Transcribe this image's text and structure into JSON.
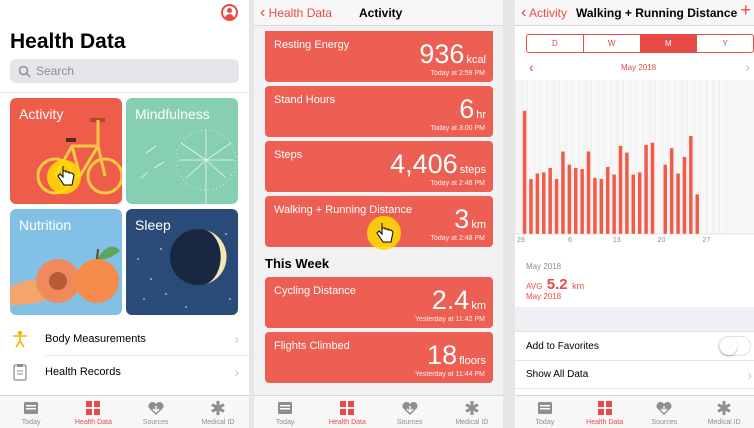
{
  "health_data": {
    "title": "Health Data",
    "search_placeholder": "Search",
    "categories": [
      {
        "label": "Activity",
        "color": "#ee5d4a"
      },
      {
        "label": "Mindfulness",
        "color": "#87cfb2"
      },
      {
        "label": "Nutrition",
        "color": "#83c0e6"
      },
      {
        "label": "Sleep",
        "color": "#2a4b78"
      }
    ],
    "rows": [
      {
        "label": "Body Measurements"
      },
      {
        "label": "Health Records"
      }
    ],
    "tabs": [
      {
        "label": "Today",
        "icon": "today-icon",
        "active": false
      },
      {
        "label": "Health Data",
        "icon": "health-data-icon",
        "active": true
      },
      {
        "label": "Sources",
        "icon": "sources-icon",
        "active": false
      },
      {
        "label": "Medical ID",
        "icon": "medical-id-icon",
        "active": false
      }
    ]
  },
  "activity": {
    "back_label": "Health Data",
    "title": "Activity",
    "cards": [
      {
        "name": "Resting Energy",
        "value": "936",
        "unit": "kcal",
        "time": "Today at 2:59 PM"
      },
      {
        "name": "Stand Hours",
        "value": "6",
        "unit": "hr",
        "time": "Today at 3:00 PM"
      },
      {
        "name": "Steps",
        "value": "4,406",
        "unit": "steps",
        "time": "Today at 2:48 PM"
      },
      {
        "name": "Walking + Running Distance",
        "value": "3",
        "unit": "km",
        "time": "Today at 2:48 PM"
      }
    ],
    "week_header": "This Week",
    "week_cards": [
      {
        "name": "Cycling Distance",
        "value": "2.4",
        "unit": "km",
        "time": "Yesterday at 11:42 PM"
      },
      {
        "name": "Flights Climbed",
        "value": "18",
        "unit": "floors",
        "time": "Yesterday at 11:44 PM"
      }
    ]
  },
  "distance": {
    "back_label": "Activity",
    "title": "Walking + Running Distance",
    "add_icon": "plus-icon",
    "segments": [
      "D",
      "W",
      "M",
      "Y"
    ],
    "selected_segment": "M",
    "month_label": "May 2018",
    "range_label": "May 2018",
    "avg_label": "AVG",
    "avg_value": "5.2",
    "avg_unit": "km",
    "avg_period": "May 2018",
    "options": [
      "Add to Favorites",
      "Show All Data"
    ],
    "favorite_on": false
  },
  "chart_data": {
    "type": "bar",
    "x_ticks": [
      "29",
      "6",
      "13",
      "20",
      "27"
    ],
    "categories": [
      "Apr 29",
      "Apr 30",
      "May 1",
      "May 2",
      "May 3",
      "May 4",
      "May 5",
      "May 6",
      "May 7",
      "May 8",
      "May 9",
      "May 10",
      "May 11",
      "May 12",
      "May 13",
      "May 14",
      "May 15",
      "May 16",
      "May 17",
      "May 18",
      "May 19",
      "May 20",
      "May 21",
      "May 22",
      "May 23",
      "May 24",
      "May 25",
      "May 26",
      "May 27",
      "May 28",
      "May 29",
      "May 30",
      "May 31"
    ],
    "values": [
      0,
      11.2,
      5.0,
      5.5,
      5.6,
      6.0,
      5.0,
      7.5,
      6.3,
      6.0,
      5.9,
      7.5,
      5.1,
      5.0,
      6.1,
      5.4,
      8.0,
      7.4,
      5.4,
      5.6,
      8.1,
      8.3,
      0,
      6.3,
      7.8,
      5.5,
      7.0,
      8.9,
      3.6,
      0,
      0,
      0,
      0
    ],
    "ylim": [
      0,
      14
    ],
    "grid": true,
    "xlabel": "",
    "ylabel": "",
    "title": ""
  }
}
